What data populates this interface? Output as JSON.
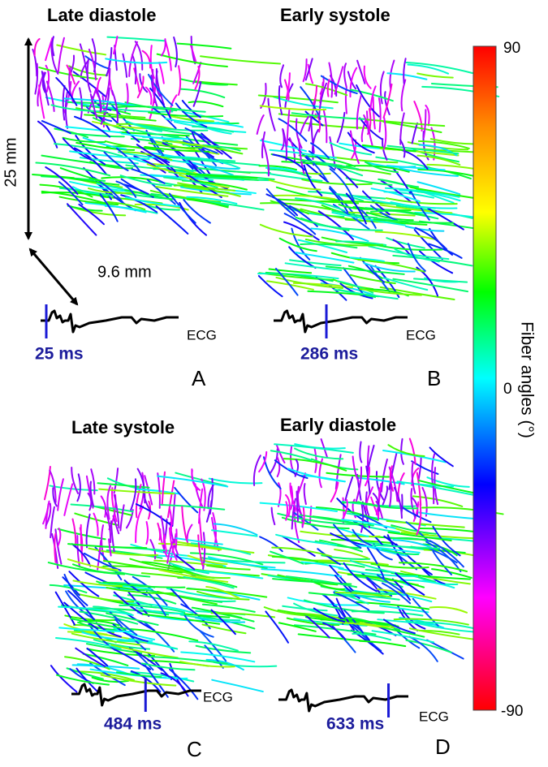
{
  "panels": [
    {
      "title": "Late diastole",
      "time": "25 ms",
      "ecg_label": "ECG",
      "letter": "A"
    },
    {
      "title": "Early systole",
      "time": "286 ms",
      "ecg_label": "ECG",
      "letter": "B"
    },
    {
      "title": "Late systole",
      "time": "484 ms",
      "ecg_label": "ECG",
      "letter": "C"
    },
    {
      "title": "Early diastole",
      "time": "633 ms",
      "ecg_label": "ECG",
      "letter": "D"
    }
  ],
  "scale_bars": {
    "vertical": "25 mm",
    "diagonal": "9.6 mm"
  },
  "colorbar": {
    "label": "Fiber angles (°)",
    "max": 90,
    "mid": 0,
    "min": -90
  }
}
